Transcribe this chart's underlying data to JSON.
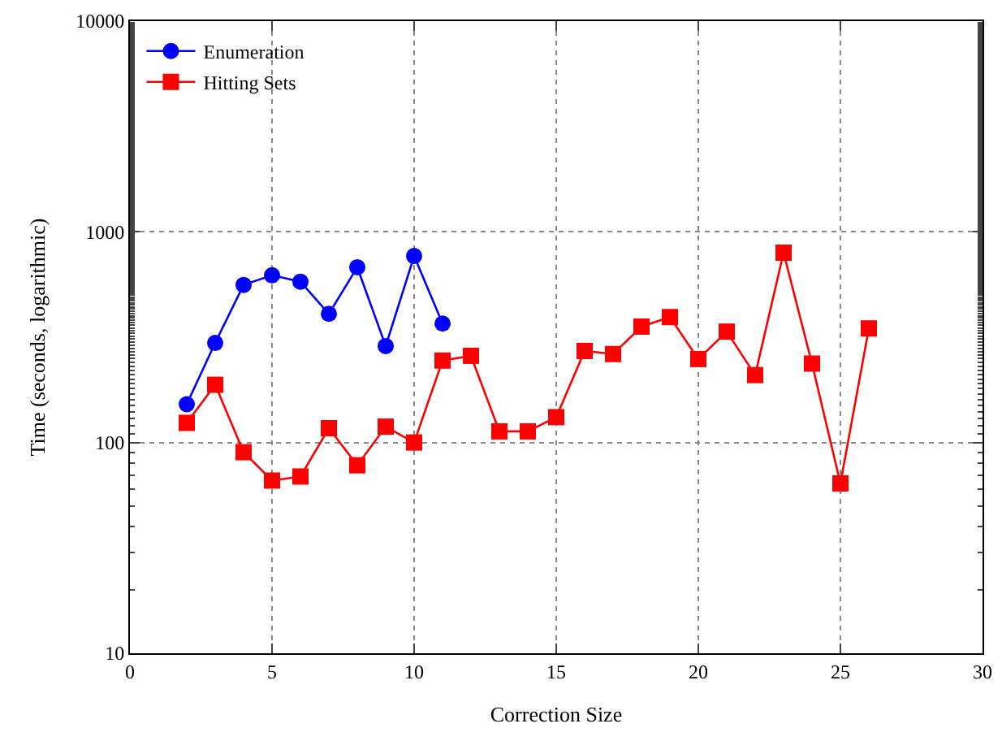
{
  "chart_data": {
    "type": "line",
    "xlabel": "Correction Size",
    "ylabel": "Time (seconds, logarithmic)",
    "log": true,
    "grid": true,
    "legend": "top left",
    "xlim": [
      0,
      30
    ],
    "xticks": [
      0,
      5,
      10,
      15,
      20,
      25,
      30
    ],
    "ylim": [
      10,
      10000
    ],
    "yticks": [
      10,
      100,
      1000,
      10000
    ],
    "x": [
      2,
      3,
      4,
      5,
      6,
      7,
      8,
      9,
      10,
      11,
      12,
      13,
      14,
      15,
      16,
      17,
      18,
      19,
      20,
      21,
      22,
      23,
      24,
      25,
      26
    ],
    "series": [
      {
        "name": "Enumeration",
        "color": "#0000ff",
        "marker": "circle",
        "values": [
          152,
          297,
          560,
          622,
          580,
          408,
          679,
          287,
          768,
          367,
          null,
          null,
          null,
          null,
          null,
          null,
          null,
          null,
          null,
          null,
          null,
          null,
          null,
          null,
          null
        ]
      },
      {
        "name": "Hitting Sets",
        "color": "#ff0000",
        "marker": "square",
        "values": [
          124,
          188,
          90,
          66,
          69,
          117,
          78,
          119,
          100,
          245,
          258,
          113,
          113,
          132,
          272,
          263,
          355,
          394,
          249,
          336,
          209,
          796,
          237,
          64,
          348
        ]
      }
    ]
  }
}
